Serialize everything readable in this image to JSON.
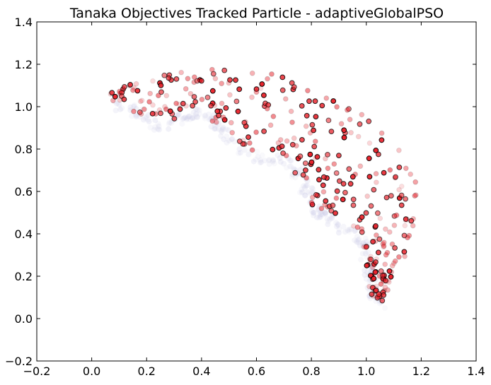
{
  "chart_data": {
    "type": "scatter",
    "title": "Tanaka Objectives Tracked Particle - adaptiveGlobalPSO",
    "xlabel": "",
    "ylabel": "",
    "xlim": [
      -0.2,
      1.4
    ],
    "ylim": [
      -0.2,
      1.4
    ],
    "xticks": [
      -0.2,
      0.0,
      0.2,
      0.4,
      0.6,
      0.8,
      1.0,
      1.2,
      1.4
    ],
    "yticks": [
      -0.2,
      0.0,
      0.2,
      0.4,
      0.6,
      0.8,
      1.0,
      1.2,
      1.4
    ],
    "xtick_labels": [
      "−0.2",
      "0.0",
      "0.2",
      "0.4",
      "0.6",
      "0.8",
      "1.0",
      "1.2",
      "1.4"
    ],
    "ytick_labels": [
      "−0.2",
      "0.0",
      "0.2",
      "0.4",
      "0.6",
      "0.8",
      "1.0",
      "1.2",
      "1.4"
    ],
    "grid": false,
    "colors": {
      "point_fill": "#e8222b",
      "point_edge": "#000000",
      "trail_tint": "#c8c8e6"
    },
    "front": [
      [
        0.08,
        1.04
      ],
      [
        0.14,
        1.0
      ],
      [
        0.18,
        0.97
      ],
      [
        0.22,
        0.94
      ],
      [
        0.27,
        0.94
      ],
      [
        0.32,
        0.97
      ],
      [
        0.37,
        1.0
      ],
      [
        0.42,
        0.98
      ],
      [
        0.47,
        0.9
      ],
      [
        0.5,
        0.87
      ],
      [
        0.55,
        0.8
      ],
      [
        0.6,
        0.79
      ],
      [
        0.65,
        0.78
      ],
      [
        0.7,
        0.75
      ],
      [
        0.74,
        0.72
      ],
      [
        0.78,
        0.62
      ],
      [
        0.81,
        0.52
      ],
      [
        0.86,
        0.49
      ],
      [
        0.9,
        0.46
      ],
      [
        0.94,
        0.43
      ],
      [
        0.98,
        0.38
      ],
      [
        1.0,
        0.26
      ],
      [
        1.02,
        0.14
      ],
      [
        1.04,
        0.08
      ]
    ],
    "region_upper": [
      [
        0.07,
        1.09
      ],
      [
        0.2,
        1.13
      ],
      [
        0.32,
        1.17
      ],
      [
        0.4,
        1.18
      ],
      [
        0.5,
        1.16
      ],
      [
        0.6,
        1.15
      ],
      [
        0.7,
        1.15
      ],
      [
        0.77,
        1.12
      ],
      [
        0.85,
        1.06
      ],
      [
        0.92,
        1.0
      ],
      [
        1.0,
        0.95
      ],
      [
        1.06,
        0.9
      ],
      [
        1.11,
        0.82
      ],
      [
        1.15,
        0.74
      ],
      [
        1.19,
        0.62
      ],
      [
        1.2,
        0.52
      ],
      [
        1.17,
        0.38
      ],
      [
        1.12,
        0.27
      ],
      [
        1.08,
        0.18
      ],
      [
        1.06,
        0.1
      ]
    ]
  }
}
